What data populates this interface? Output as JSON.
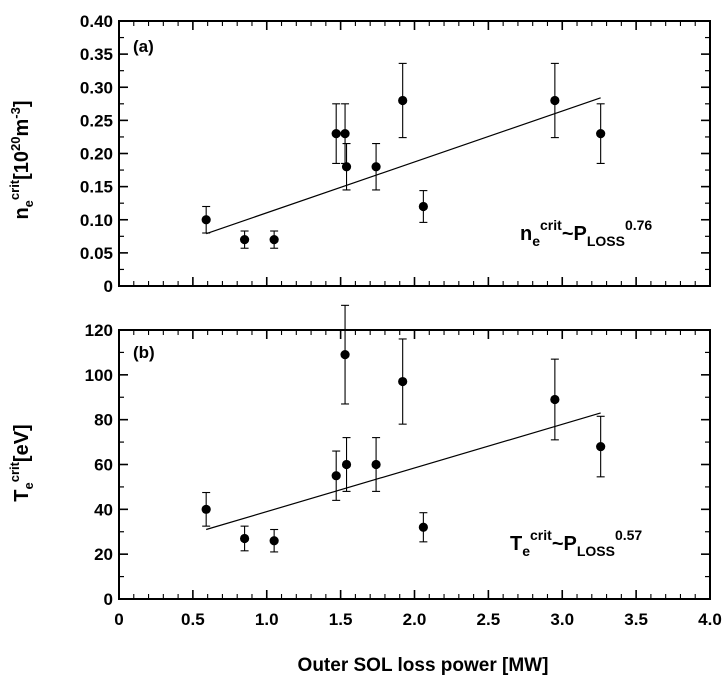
{
  "chart_data": [
    {
      "type": "scatter",
      "panel_tag": "(a)",
      "ylabel": {
        "main": "n",
        "sub": "e",
        "sup": "crit",
        "unit": "[10",
        "unit_sup": "20",
        "unit_mid": "m",
        "unit_sup2": "-3",
        "unit_end": "]"
      },
      "fit_label": {
        "main": "n",
        "sub": "e",
        "sup": "crit",
        "rel": "~P",
        "rel_sub": "LOSS",
        "rel_sup": "0.76"
      },
      "xlim": [
        0,
        4.0
      ],
      "ylim": [
        0,
        0.4
      ],
      "yticks": [
        "0",
        "0.05",
        "0.10",
        "0.15",
        "0.20",
        "0.25",
        "0.30",
        "0.35",
        "0.40"
      ],
      "points": [
        {
          "x": 0.59,
          "y": 0.1,
          "err": 0.02
        },
        {
          "x": 0.85,
          "y": 0.07,
          "err": 0.013
        },
        {
          "x": 1.05,
          "y": 0.07,
          "err": 0.013
        },
        {
          "x": 1.47,
          "y": 0.23,
          "err": 0.045
        },
        {
          "x": 1.53,
          "y": 0.23,
          "err": 0.045
        },
        {
          "x": 1.54,
          "y": 0.18,
          "err": 0.035
        },
        {
          "x": 1.74,
          "y": 0.18,
          "err": 0.035
        },
        {
          "x": 1.92,
          "y": 0.28,
          "err": 0.056
        },
        {
          "x": 2.06,
          "y": 0.12,
          "err": 0.024
        },
        {
          "x": 2.95,
          "y": 0.28,
          "err": 0.056
        },
        {
          "x": 3.26,
          "y": 0.23,
          "err": 0.045
        }
      ],
      "fit": {
        "x": [
          0.59,
          3.26
        ],
        "y": [
          0.079,
          0.284
        ]
      },
      "grid": false
    },
    {
      "type": "scatter",
      "panel_tag": "(b)",
      "ylabel": {
        "main": "T",
        "sub": "e",
        "sup": "crit",
        "unit": "[eV]"
      },
      "fit_label": {
        "main": "T",
        "sub": "e",
        "sup": "crit",
        "rel": "~P",
        "rel_sub": "LOSS",
        "rel_sup": "0.57"
      },
      "xlim": [
        0,
        4.0
      ],
      "ylim": [
        0,
        120
      ],
      "yticks": [
        "0",
        "20",
        "40",
        "60",
        "80",
        "100",
        "120"
      ],
      "points": [
        {
          "x": 0.59,
          "y": 40,
          "err": 7.5
        },
        {
          "x": 0.85,
          "y": 27,
          "err": 5.5
        },
        {
          "x": 1.05,
          "y": 26,
          "err": 5.0
        },
        {
          "x": 1.47,
          "y": 55,
          "err": 11
        },
        {
          "x": 1.53,
          "y": 109,
          "err": 22
        },
        {
          "x": 1.54,
          "y": 60,
          "err": 12
        },
        {
          "x": 1.74,
          "y": 60,
          "err": 12
        },
        {
          "x": 1.92,
          "y": 97,
          "err": 19
        },
        {
          "x": 2.06,
          "y": 32,
          "err": 6.5
        },
        {
          "x": 2.95,
          "y": 89,
          "err": 18
        },
        {
          "x": 3.26,
          "y": 68,
          "err": 13.5
        }
      ],
      "fit": {
        "x": [
          0.59,
          3.26
        ],
        "y": [
          31,
          83
        ]
      },
      "grid": false
    }
  ],
  "xticks": [
    "0",
    "0.5",
    "1.0",
    "1.5",
    "2.0",
    "2.5",
    "3.0",
    "3.5",
    "4.0"
  ],
  "xlabel": "Outer SOL loss power [MW]"
}
